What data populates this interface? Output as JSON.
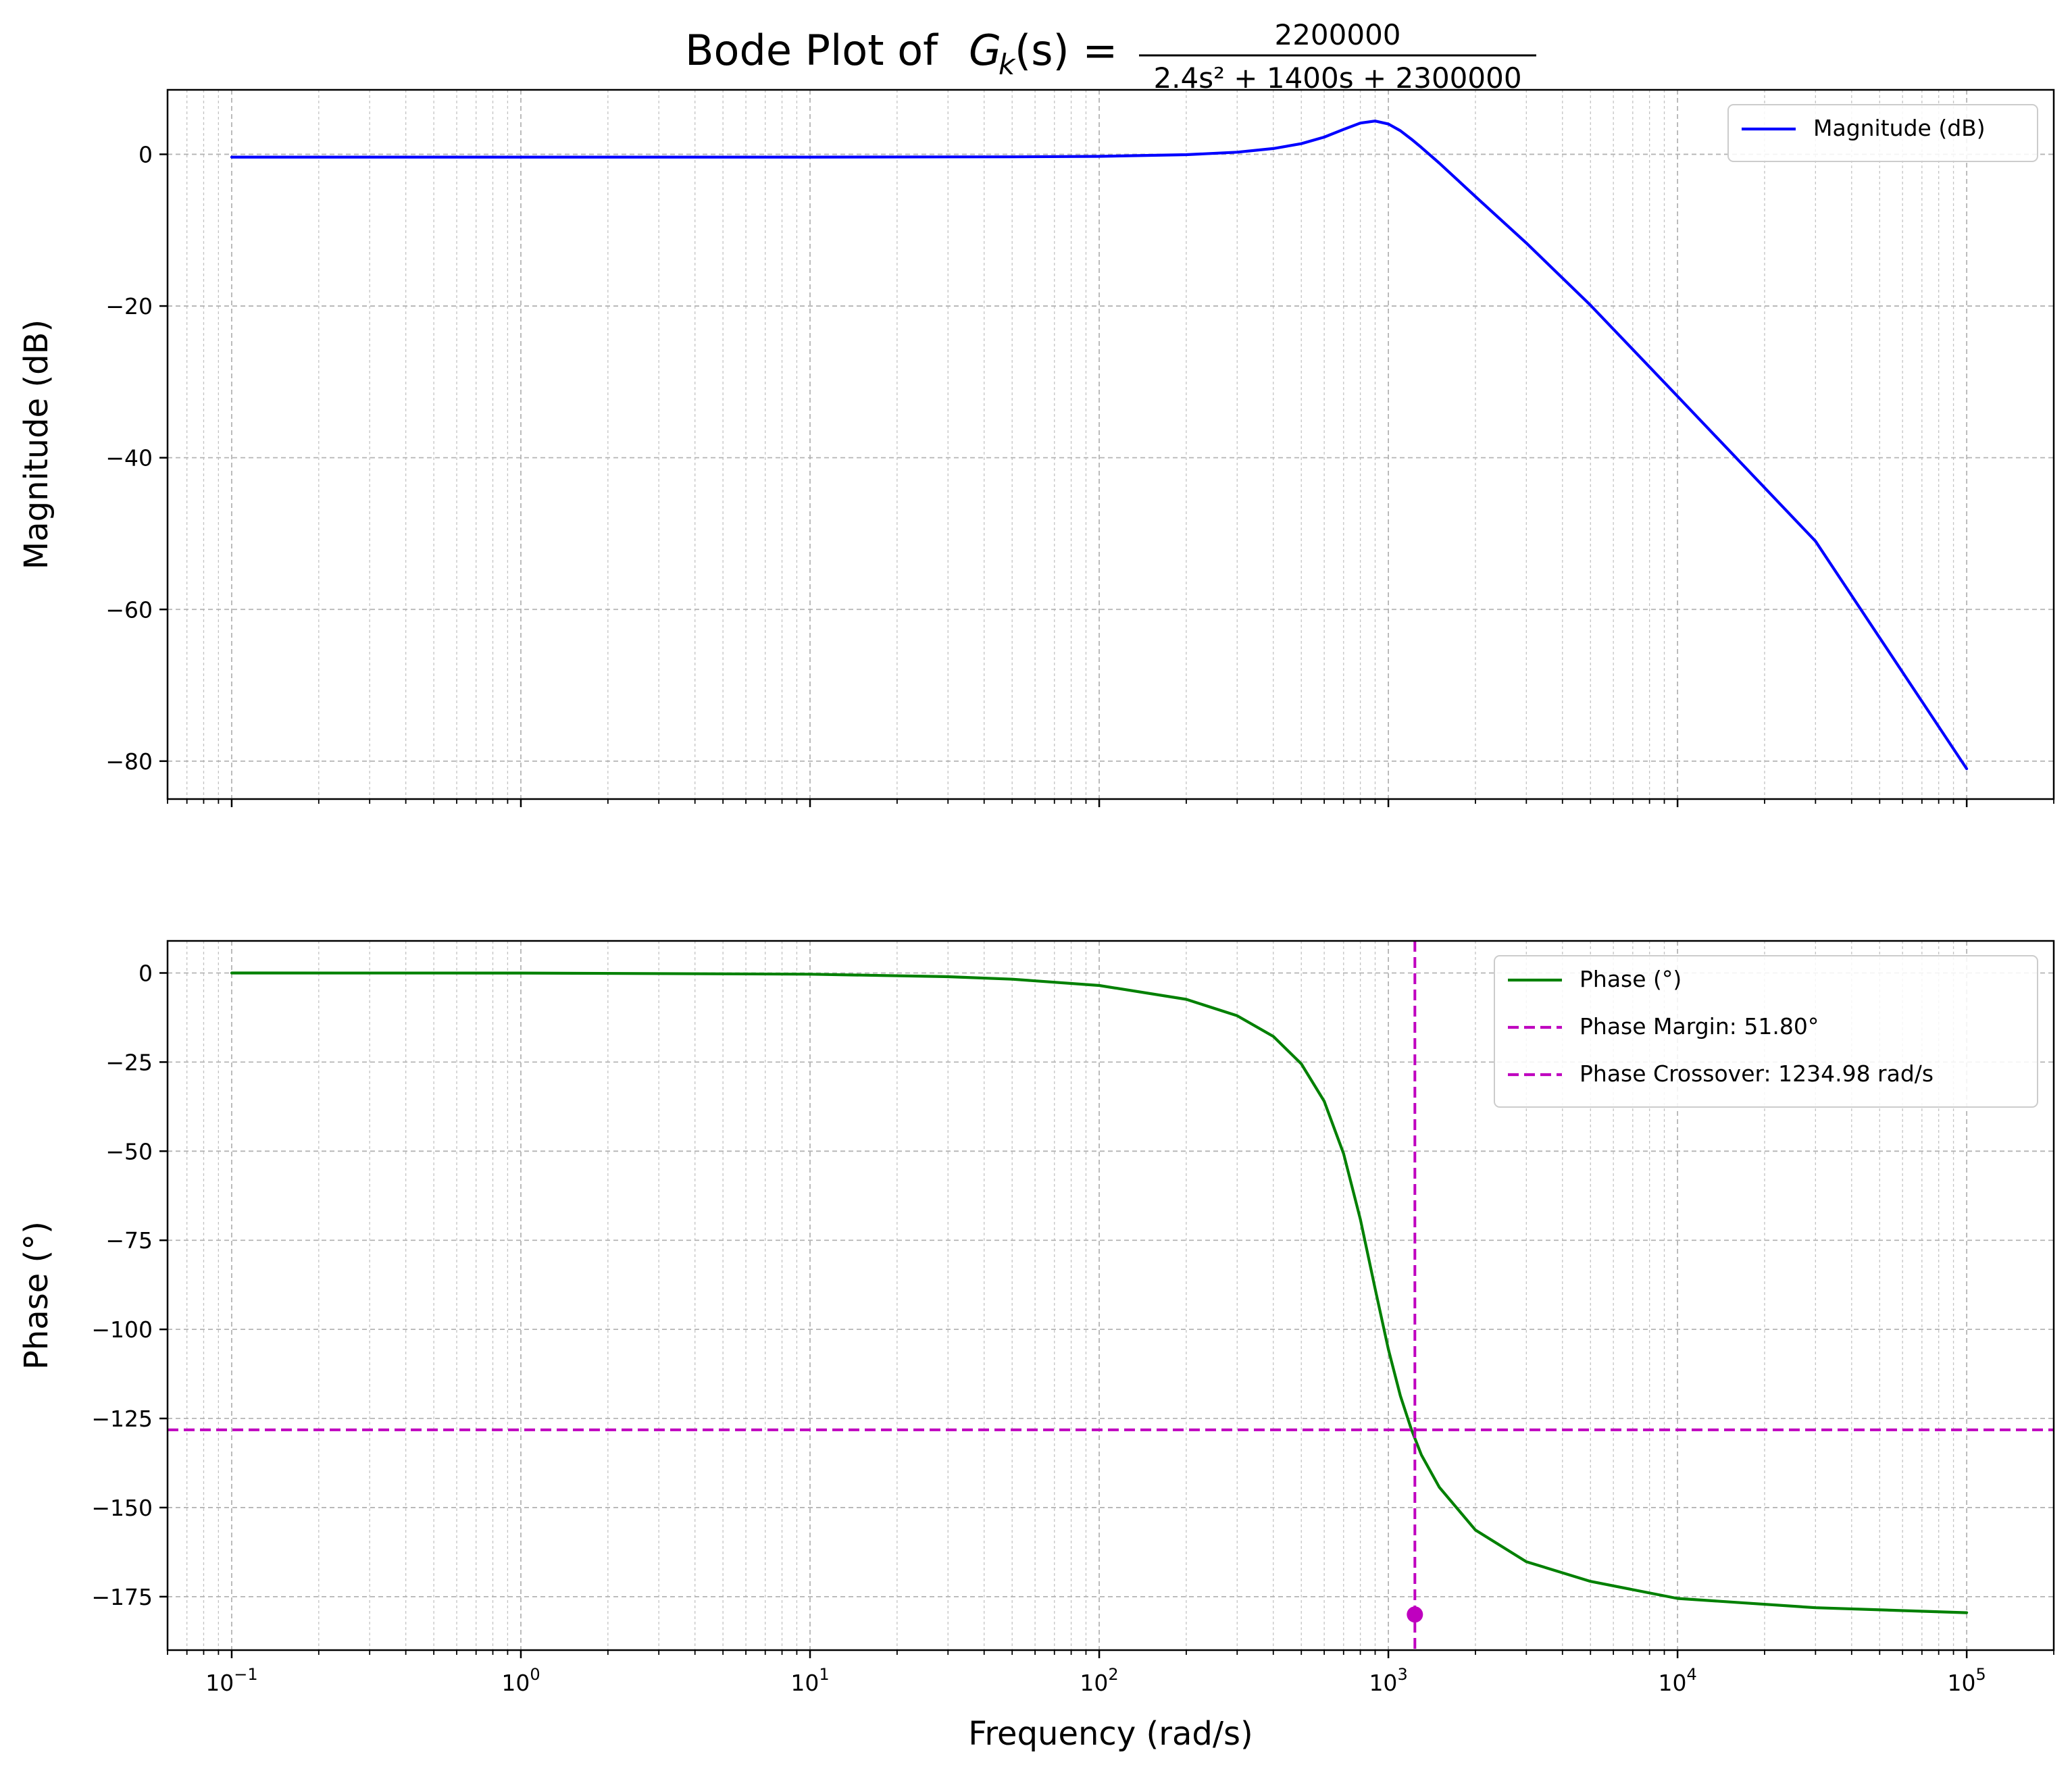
{
  "figure": {
    "title_prefix": "Bode Plot of ",
    "title_G": "G",
    "title_sub": "k",
    "title_arg": "(s) =",
    "title_numerator": "2200000",
    "title_denominator": "2.4s² + 1400s + 2300000"
  },
  "colors": {
    "magnitude": "#0000ff",
    "phase": "#008000",
    "margin_lines": "#bf00bf",
    "grid": "#b0b0b0"
  },
  "chart_data": [
    {
      "type": "line",
      "panel": "magnitude",
      "xscale": "log",
      "xlim": [
        0.06,
        200000
      ],
      "ylim": [
        -85,
        8.5
      ],
      "xlabel": "",
      "ylabel": "Magnitude (dB)",
      "yticks": [
        0,
        -20,
        -40,
        -60,
        -80
      ],
      "yticklabels": [
        "0",
        "−20",
        "−40",
        "−60",
        "−80"
      ],
      "grid": "on (major and minor)",
      "legend_placement": "top-right",
      "series": [
        {
          "name": "Magnitude (dB)",
          "x": [
            0.1,
            1,
            10,
            50,
            100,
            200,
            300,
            400,
            500,
            600,
            700,
            800,
            900,
            1000,
            1100,
            1200,
            1300,
            1500,
            2000,
            3000,
            5000,
            10000,
            30000,
            100000
          ],
          "y": [
            -0.37,
            -0.37,
            -0.37,
            -0.33,
            -0.27,
            -0.05,
            0.28,
            0.76,
            1.4,
            2.27,
            3.28,
            4.12,
            4.39,
            3.99,
            3.11,
            2.01,
            0.9,
            -1.16,
            -5.56,
            -11.7,
            -19.9,
            -31.9,
            -51.0,
            -81.0
          ]
        }
      ]
    },
    {
      "type": "line",
      "panel": "phase",
      "xscale": "log",
      "xlim": [
        0.06,
        200000
      ],
      "ylim": [
        -190,
        9
      ],
      "xlabel": "Frequency (rad/s)",
      "ylabel": "Phase (°)",
      "xticks": [
        0.1,
        1,
        10,
        100,
        1000,
        10000,
        100000
      ],
      "xticklabels": [
        {
          "base": "10",
          "exp": "−1"
        },
        {
          "base": "10",
          "exp": "0"
        },
        {
          "base": "10",
          "exp": "1"
        },
        {
          "base": "10",
          "exp": "2"
        },
        {
          "base": "10",
          "exp": "3"
        },
        {
          "base": "10",
          "exp": "4"
        },
        {
          "base": "10",
          "exp": "5"
        }
      ],
      "yticks": [
        0,
        -25,
        -50,
        -75,
        -100,
        -125,
        -150,
        -175
      ],
      "yticklabels": [
        "0",
        "−25",
        "−50",
        "−75",
        "−100",
        "−125",
        "−150",
        "−175"
      ],
      "grid": "on (major and minor)",
      "legend_placement": "top-right",
      "series": [
        {
          "name": "Phase (°)",
          "x": [
            0.1,
            1,
            10,
            30,
            50,
            100,
            200,
            300,
            400,
            500,
            600,
            700,
            800,
            900,
            1000,
            1100,
            1200,
            1300,
            1500,
            2000,
            3000,
            5000,
            10000,
            30000,
            100000
          ],
          "y": [
            -0.003,
            -0.03,
            -0.35,
            -1.05,
            -1.75,
            -3.5,
            -7.4,
            -12.0,
            -17.8,
            -25.5,
            -36.0,
            -50.7,
            -69.1,
            -88.6,
            -105.6,
            -118.6,
            -128.0,
            -135.2,
            -144.3,
            -156.3,
            -165.2,
            -170.7,
            -175.5,
            -178.1,
            -179.5
          ]
        },
        {
          "name": "Phase Margin: 51.80°",
          "style": "dashed horizontal",
          "y": -128.2
        },
        {
          "name": "Phase Crossover: 1234.98 rad/s",
          "style": "dashed vertical",
          "x": 1234.98
        },
        {
          "name": "",
          "style": "marker",
          "x": 1234.98,
          "y": -180
        }
      ]
    }
  ]
}
